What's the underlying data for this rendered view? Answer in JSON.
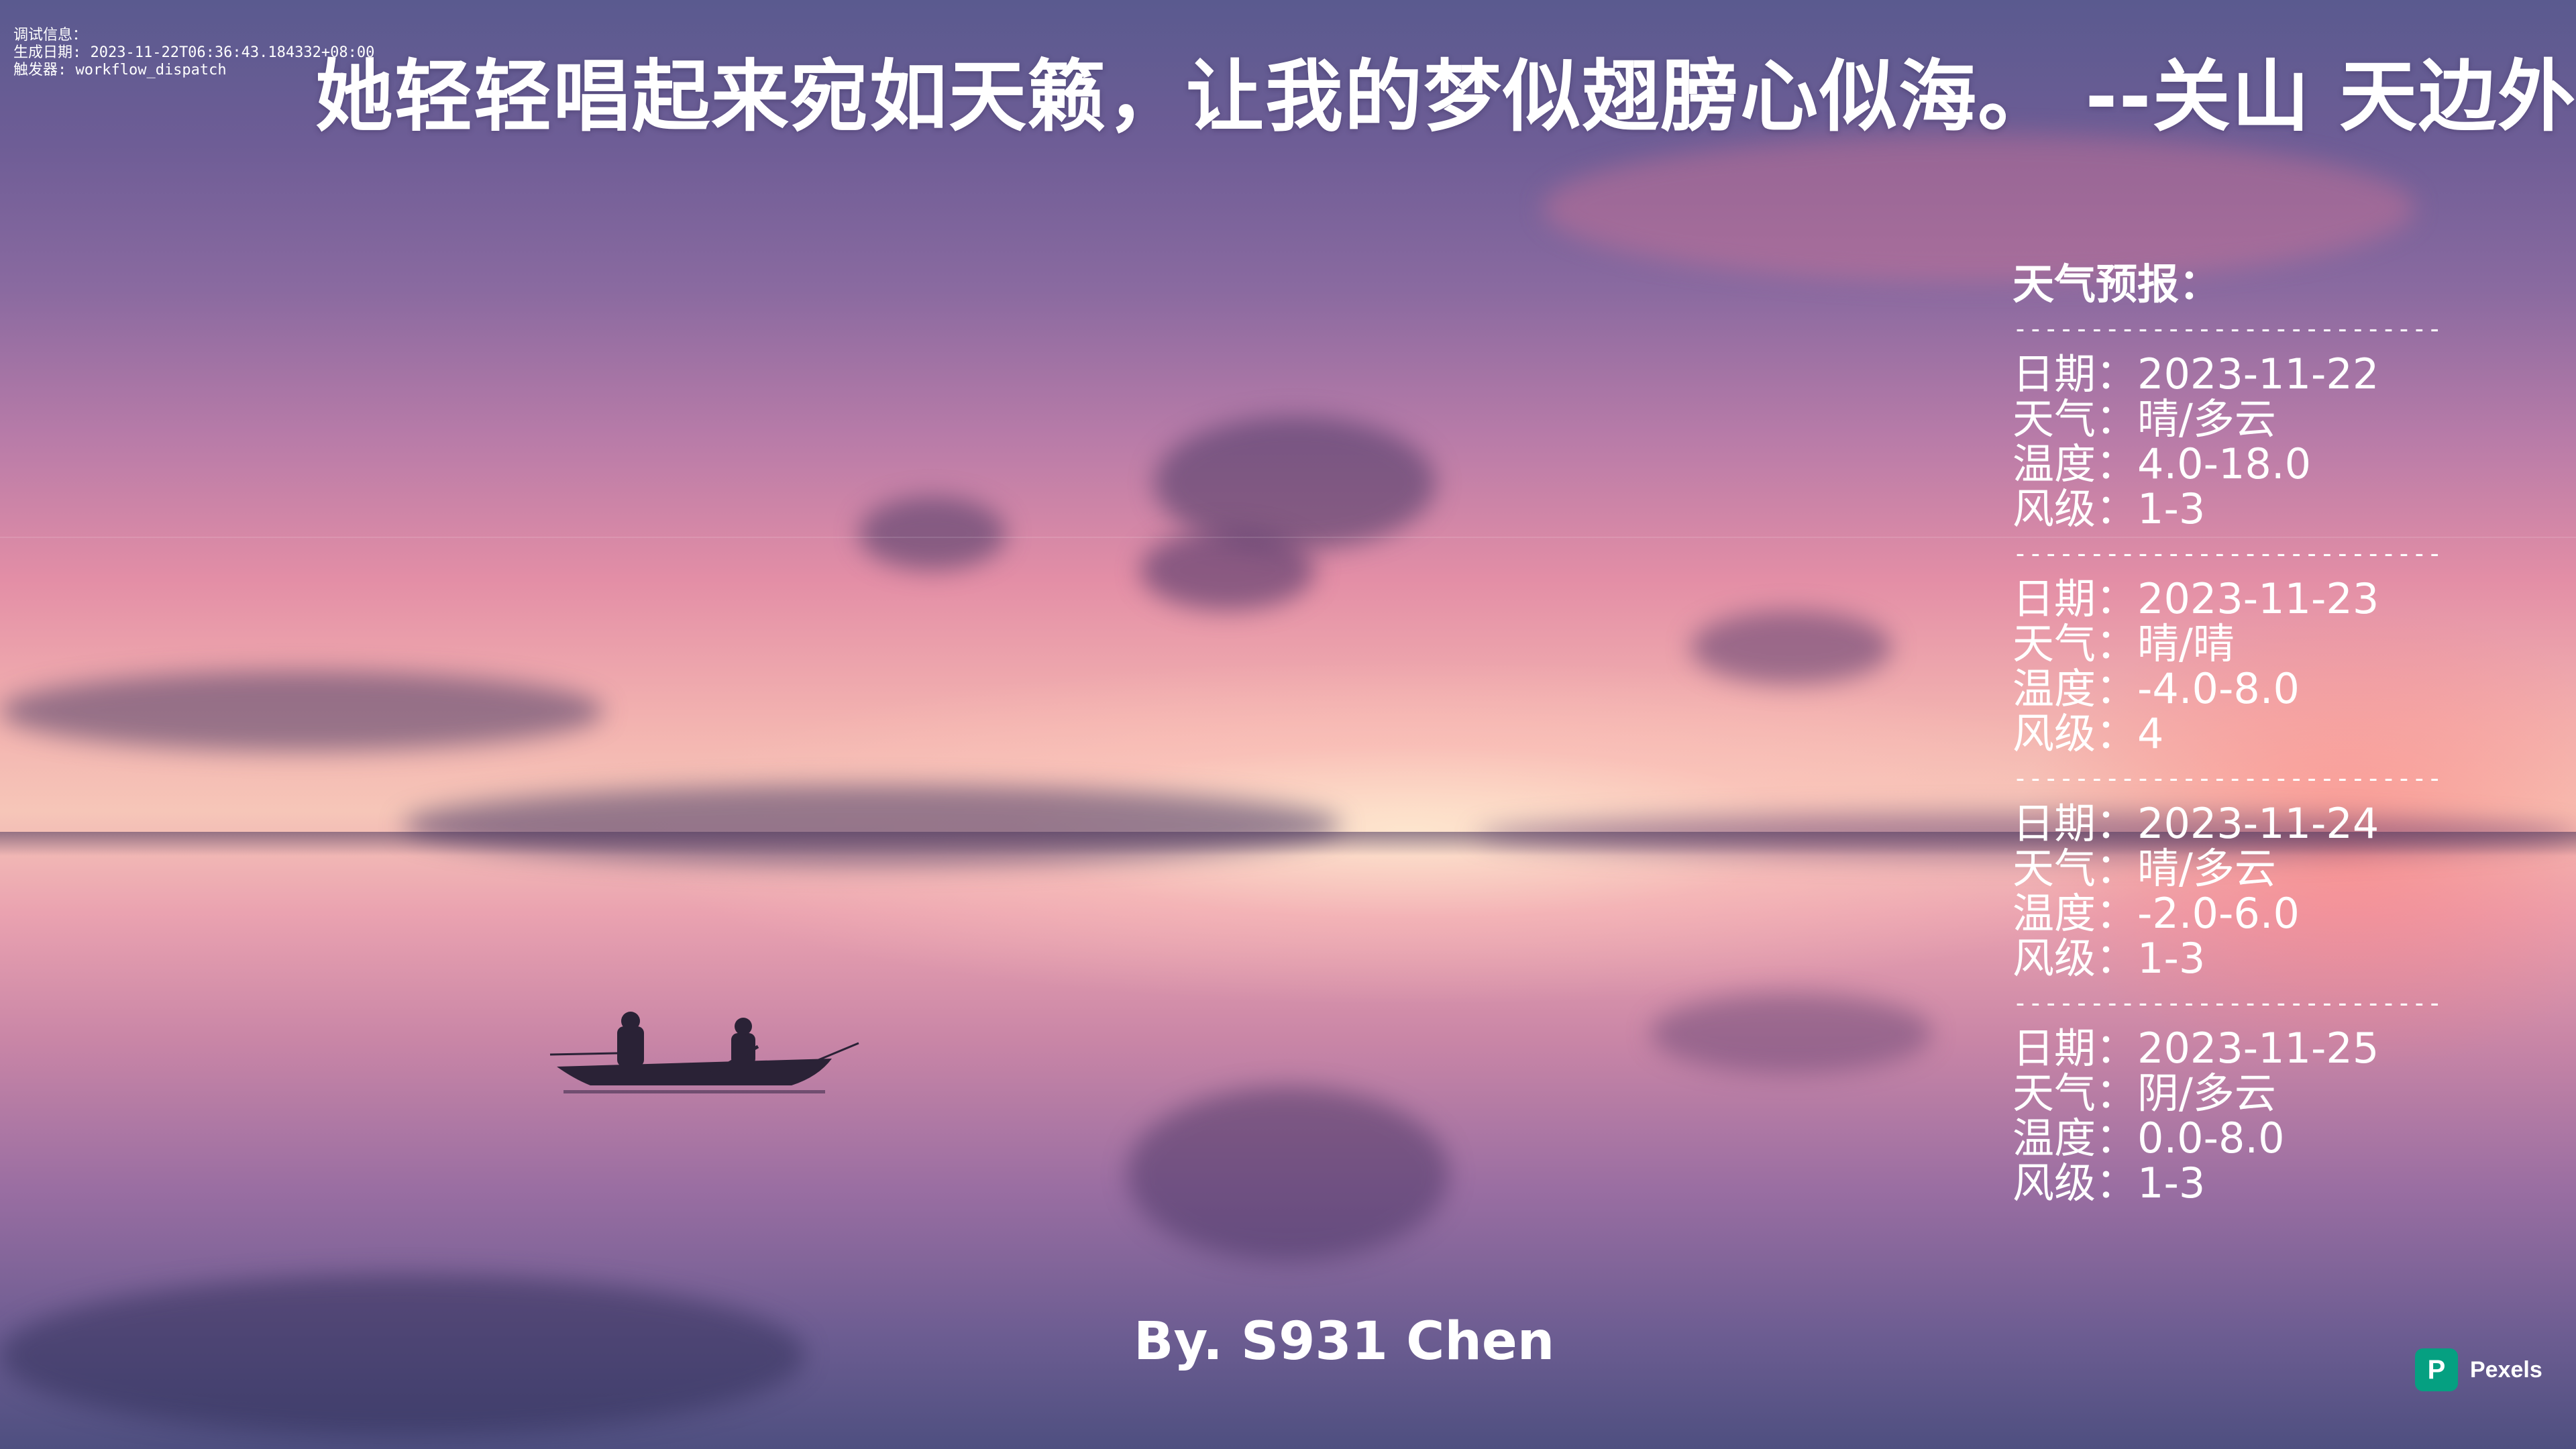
{
  "debug": {
    "label": "调试信息：",
    "date_line": "生成日期: 2023-11-22T06:36:43.184332+08:00",
    "trigger_line": "触发器: workflow_dispatch"
  },
  "quote": "她轻轻唱起来宛如天籁，让我的梦似翅膀心似海。 --关山 天边外",
  "weather": {
    "heading": "天气预报：",
    "separator": "----------------------------",
    "days": [
      {
        "date": "日期：2023-11-22",
        "weather": "天气：晴/多云",
        "temp": "温度：4.0-18.0",
        "wind": "风级：1-3"
      },
      {
        "date": "日期：2023-11-23",
        "weather": "天气：晴/晴",
        "temp": "温度：-4.0-8.0",
        "wind": "风级：4"
      },
      {
        "date": "日期：2023-11-24",
        "weather": "天气：晴/多云",
        "temp": "温度：-2.0-6.0",
        "wind": "风级：1-3"
      },
      {
        "date": "日期：2023-11-25",
        "weather": "天气：阴/多云",
        "temp": "温度：0.0-8.0",
        "wind": "风级：1-3"
      }
    ]
  },
  "author": "By. S931 Chen",
  "credit": {
    "icon": "pexels-logo-icon",
    "logo_letter": "P",
    "name": "Pexels",
    "brand_color": "#05a081"
  }
}
